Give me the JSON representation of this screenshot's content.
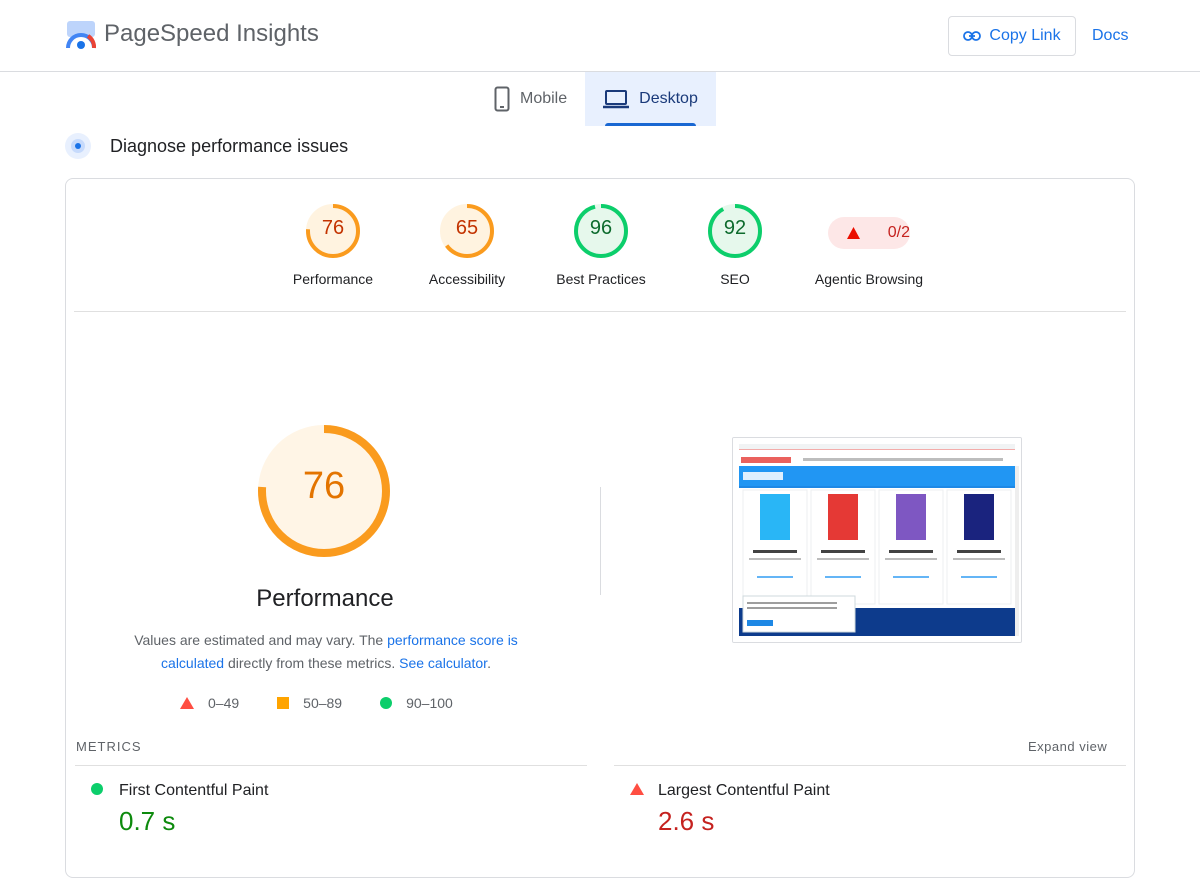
{
  "header": {
    "app_title": "PageSpeed Insights",
    "copy_link": "Copy Link",
    "docs": "Docs"
  },
  "tabs": [
    {
      "label": "Mobile",
      "icon": "phone-icon",
      "active": false
    },
    {
      "label": "Desktop",
      "icon": "laptop-icon",
      "active": true
    }
  ],
  "section": {
    "title": "Diagnose performance issues"
  },
  "scores": [
    {
      "label": "Performance",
      "value": "76",
      "fraction": 0.76,
      "color": "#fa9b1e"
    },
    {
      "label": "Accessibility",
      "value": "65",
      "fraction": 0.65,
      "color": "#fa9b1e"
    },
    {
      "label": "Best Practices",
      "value": "96",
      "fraction": 0.96,
      "color": "#0cce6b"
    },
    {
      "label": "SEO",
      "value": "92",
      "fraction": 0.92,
      "color": "#0cce6b"
    }
  ],
  "agentic": {
    "label": "Agentic Browsing",
    "value": "0/2",
    "icon": "warning-triangle-icon"
  },
  "performance": {
    "score": "76",
    "fraction": 0.76,
    "label": "Performance",
    "note_prefix": "Values are estimated and may vary. The ",
    "note_link1": "performance score is calculated",
    "note_mid": " directly from these metrics. ",
    "note_link2": "See calculator",
    "note_suffix": "."
  },
  "legend": [
    {
      "range": "0–49",
      "shape": "triangle",
      "color": "#ff4e42"
    },
    {
      "range": "50–89",
      "shape": "square",
      "color": "#ffa400"
    },
    {
      "range": "90–100",
      "shape": "circle",
      "color": "#0cce6b"
    }
  ],
  "metrics": {
    "heading": "METRICS",
    "expand": "Expand view",
    "items": [
      {
        "name": "First Contentful Paint",
        "value": "0.7 s",
        "status": "pass",
        "color": "#0d8a0d"
      },
      {
        "name": "Largest Contentful Paint",
        "value": "2.6 s",
        "status": "fail",
        "color": "#c5221f"
      }
    ]
  },
  "colors": {
    "accent": "#1a73e8",
    "average": "#fa9b1e",
    "pass": "#0cce6b",
    "fail": "#ff4e42"
  }
}
